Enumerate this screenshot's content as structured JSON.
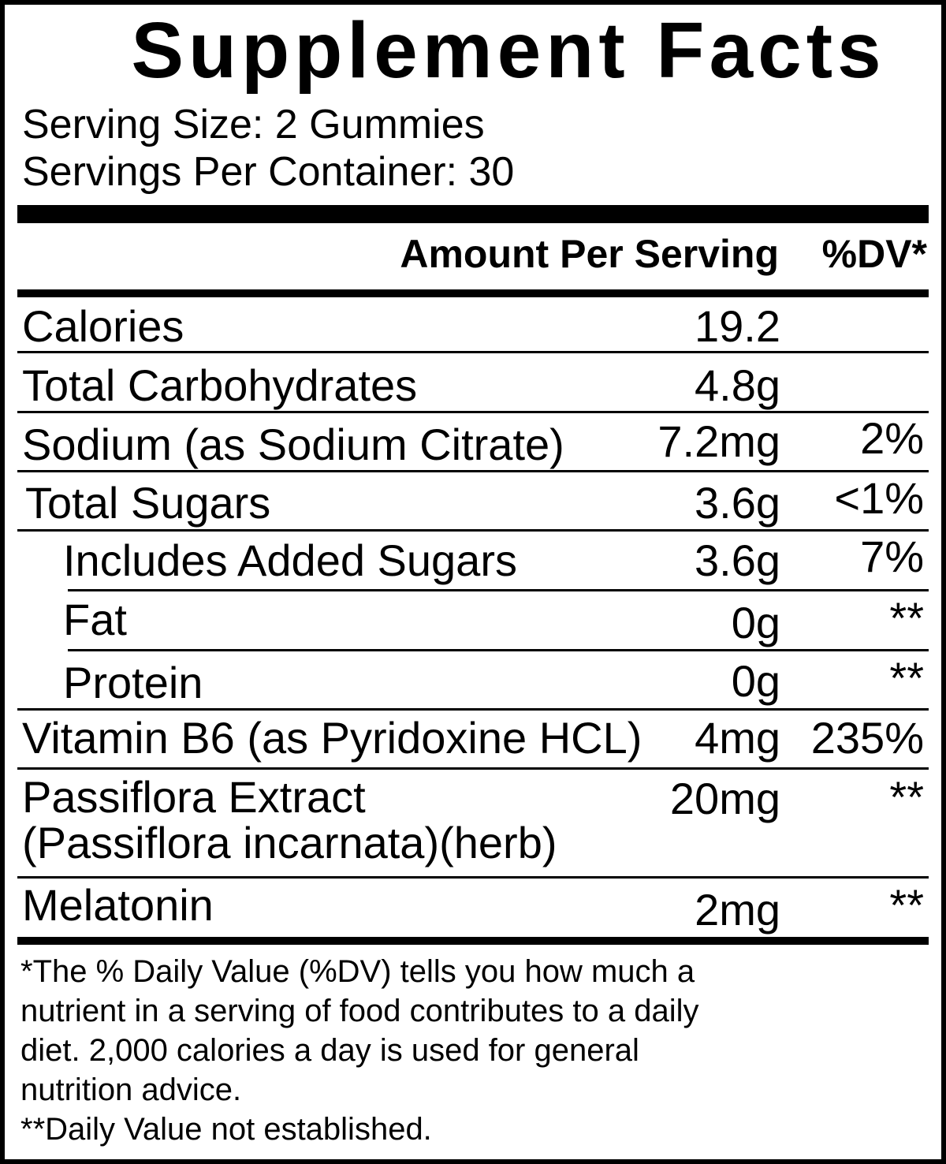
{
  "title": "Supplement Facts",
  "serving_size": "Serving Size: 2 Gummies",
  "servings_per_container": "Servings Per Container: 30",
  "header": {
    "amount": "Amount Per Serving",
    "dv": "%DV*"
  },
  "rows": [
    {
      "label": "Calories",
      "amount": "19.2",
      "dv": ""
    },
    {
      "label": "Total Carbohydrates",
      "amount": "4.8g",
      "dv": ""
    },
    {
      "label": "Sodium (as Sodium Citrate)",
      "amount": "7.2mg",
      "dv": "2%"
    },
    {
      "label": "Total Sugars",
      "amount": "3.6g",
      "dv": "<1%"
    },
    {
      "label": "Includes Added Sugars",
      "amount": "3.6g",
      "dv": "7%"
    },
    {
      "label": "Fat",
      "amount": "0g",
      "dv": "**"
    },
    {
      "label": "Protein",
      "amount": "0g",
      "dv": "**"
    },
    {
      "label": "Vitamin B6 (as Pyridoxine HCL)",
      "amount": "4mg",
      "dv": "235%"
    },
    {
      "label": "Passiflora Extract",
      "label2": "(Passiflora incarnata)(herb)",
      "amount": "20mg",
      "dv": "**"
    },
    {
      "label": "Melatonin",
      "amount": "2mg",
      "dv": "**"
    }
  ],
  "footnote": [
    "*The % Daily Value (%DV) tells you how much a",
    "nutrient in a serving of food contributes to a daily",
    "diet. 2,000 calories a day is used for general",
    "nutrition advice.",
    "**Daily Value not established."
  ]
}
